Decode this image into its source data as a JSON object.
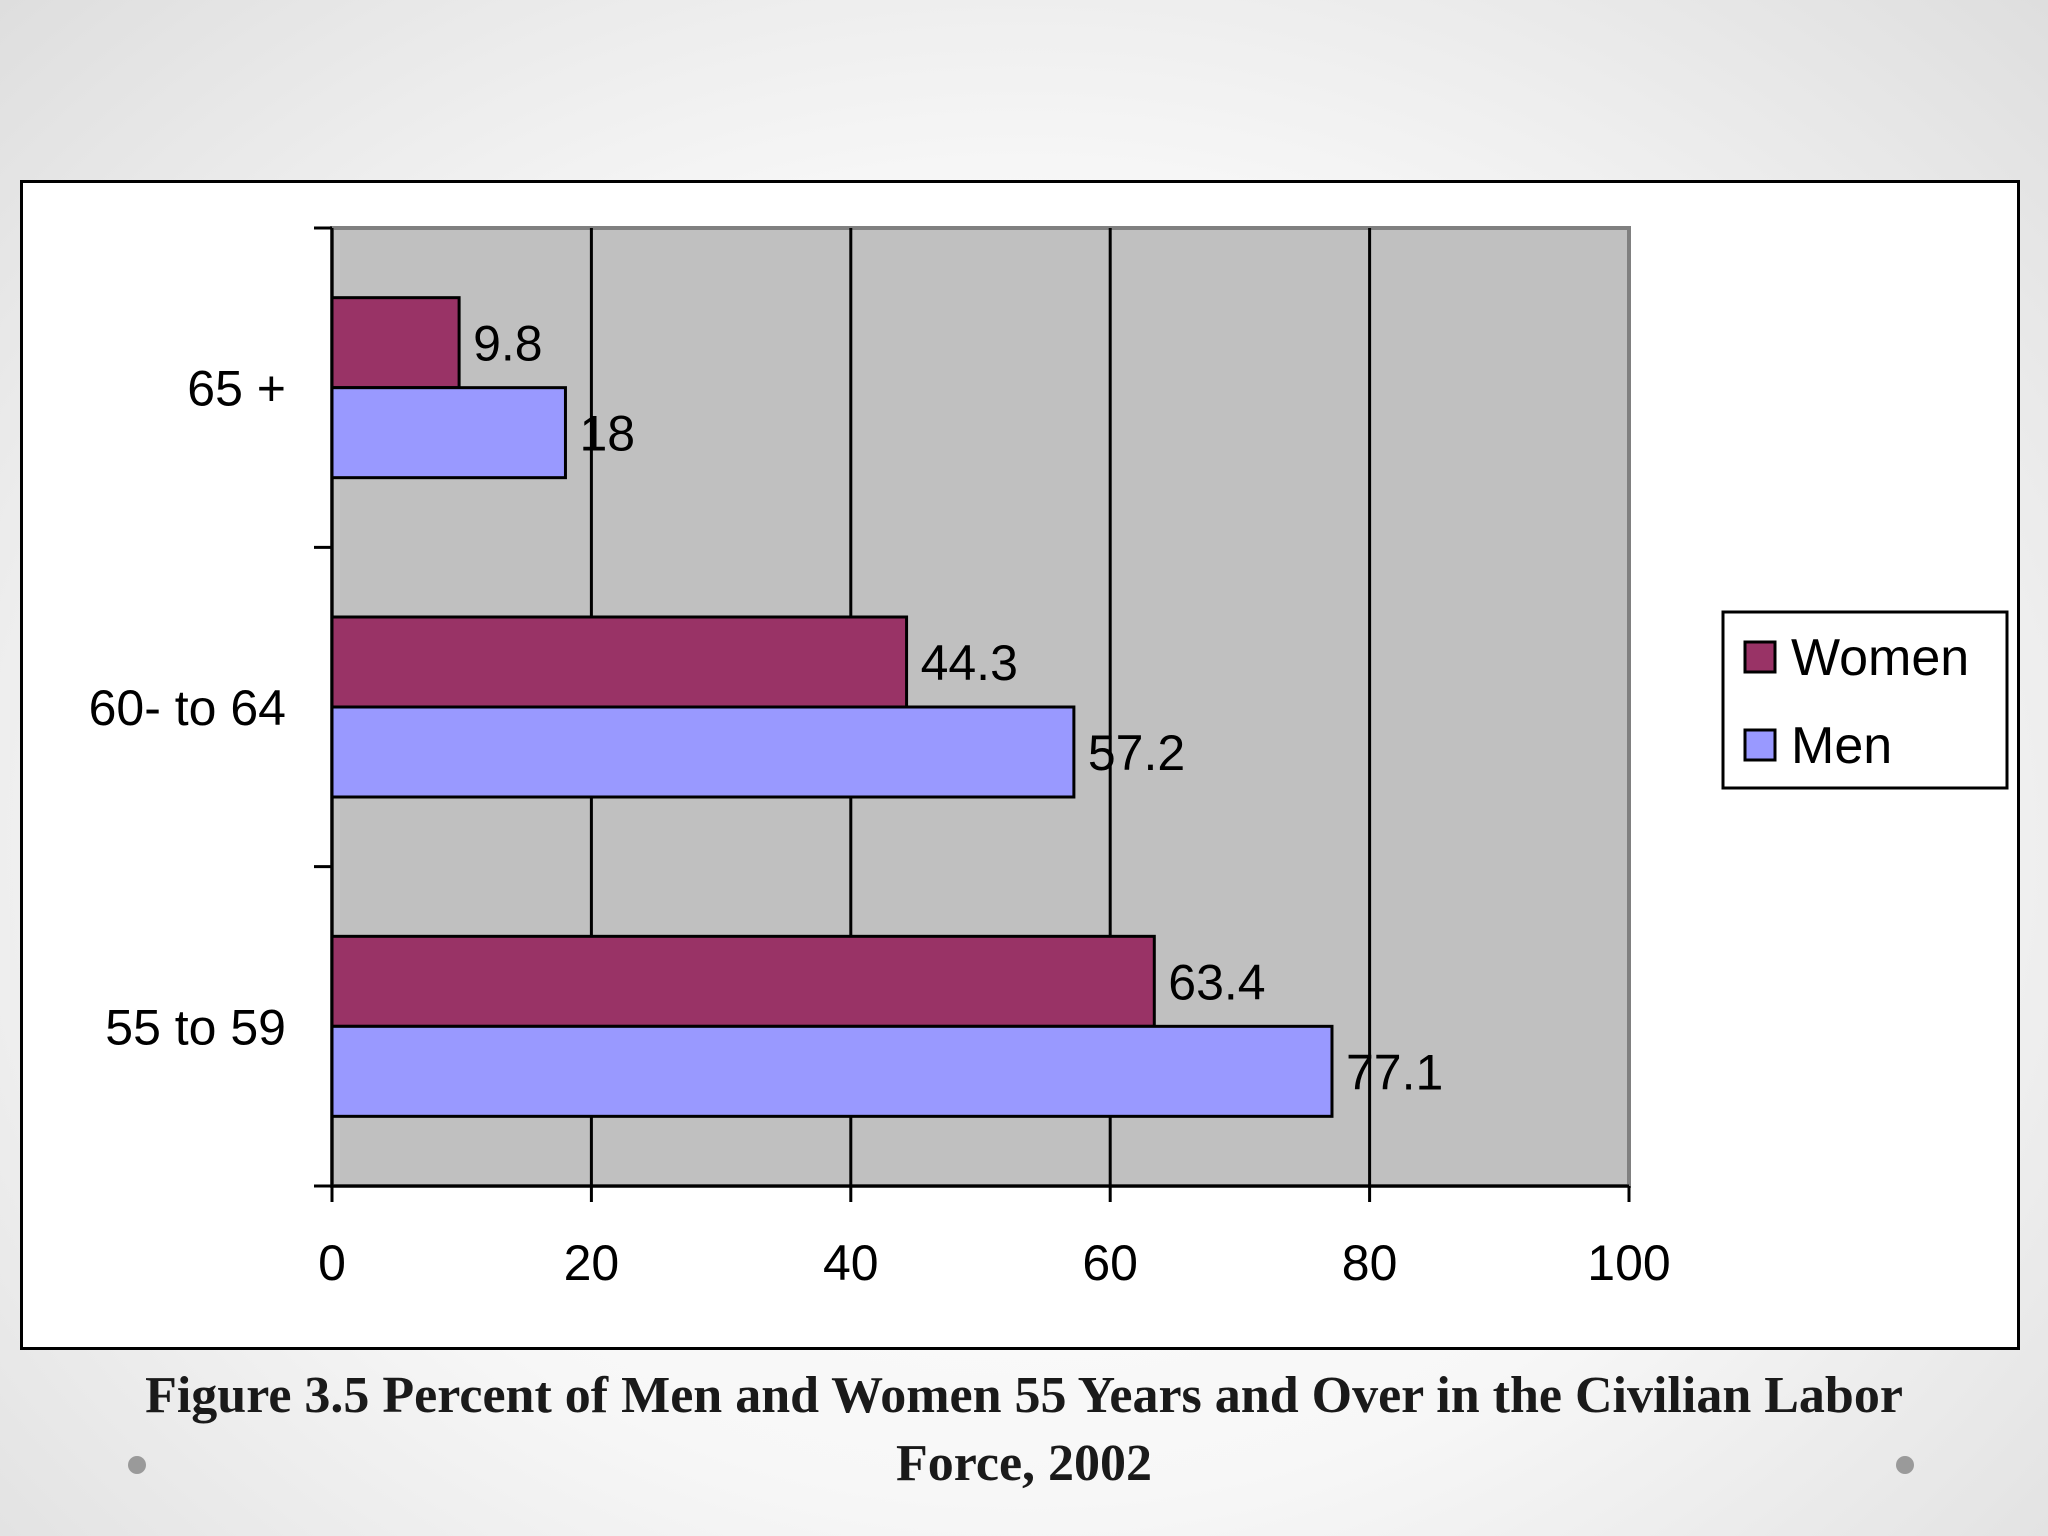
{
  "chart_data": {
    "type": "bar",
    "orientation": "horizontal",
    "categories": [
      "65 +",
      "60- to 64",
      "55 to 59"
    ],
    "series": [
      {
        "name": "Women",
        "values": [
          9.8,
          44.3,
          63.4
        ],
        "color": "#993366"
      },
      {
        "name": "Men",
        "values": [
          18,
          57.2,
          77.1
        ],
        "color": "#9999FF"
      }
    ],
    "data_labels": {
      "Women": [
        "9.8",
        "44.3",
        "63.4"
      ],
      "Men": [
        "18",
        "57.2",
        "77.1"
      ]
    },
    "xlim": [
      0,
      100
    ],
    "x_ticks": [
      0,
      20,
      40,
      60,
      80,
      100
    ],
    "x_tick_labels": [
      "0",
      "20",
      "40",
      "60",
      "80",
      "100"
    ],
    "grid": true,
    "plot_background": "#C0C0C0",
    "legend_position": "right",
    "title": "",
    "xlabel": "",
    "ylabel": ""
  },
  "caption": {
    "line1": "Figure 3.5 Percent of Men and Women 55 Years and Over in the Civilian Labor",
    "line2": "Force, 2002"
  }
}
